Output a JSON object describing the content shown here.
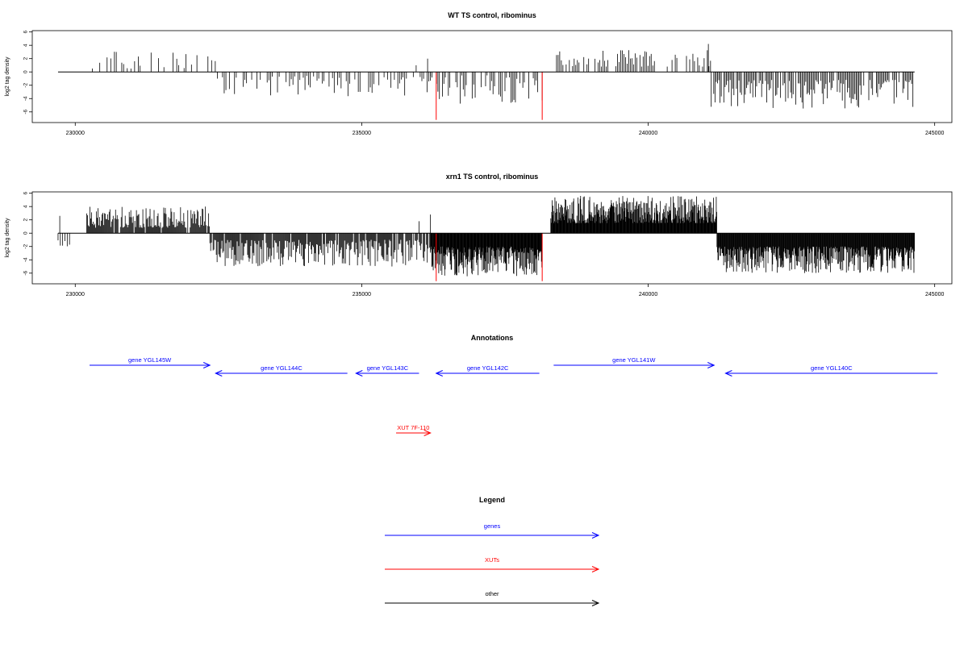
{
  "chart_data": [
    {
      "type": "bar",
      "id": "wt",
      "title": "WT TS control, ribominus",
      "xlabel": "",
      "ylabel": "log2 tag density",
      "xlim": [
        229250,
        245300
      ],
      "ylim": [
        -7.6,
        6.2
      ],
      "x_ticks": [
        230000,
        235000,
        240000,
        245000
      ],
      "x_tick_labels": [
        "230000",
        "235000",
        "240000",
        "245000"
      ],
      "y_ticks": [
        6,
        4,
        2,
        0,
        -2,
        -4,
        -6
      ],
      "y_tick_labels": [
        "6",
        "4",
        "2",
        "0",
        "-2",
        "-4",
        "-6"
      ],
      "baseline": [
        229700,
        244650
      ],
      "segments": [
        {
          "start": 230300,
          "end": 232450,
          "sign": 1,
          "min": 0.5,
          "max": 3.2,
          "step": 32,
          "density": 0.45
        },
        {
          "start": 232450,
          "end": 236200,
          "sign": -1,
          "min": 0.6,
          "max": 3.8,
          "step": 30,
          "density": 0.55
        },
        {
          "start": 236200,
          "end": 238150,
          "sign": -1,
          "min": 0.5,
          "max": 4.8,
          "step": 26,
          "density": 0.6
        },
        {
          "start": 238400,
          "end": 241100,
          "sign": 1,
          "min": 0.8,
          "max": 3.3,
          "step": 28,
          "density": 0.7
        },
        {
          "start": 241100,
          "end": 244650,
          "sign": -1,
          "min": 1.2,
          "max": 5.5,
          "step": 22,
          "density": 0.85
        }
      ],
      "highlights": [
        {
          "x": 236300,
          "value": -7.2,
          "color": "#ff0000"
        },
        {
          "x": 238150,
          "value": -7.2,
          "color": "#ff0000"
        }
      ],
      "extra_bars": [
        {
          "x": 235950,
          "value": 1.0
        },
        {
          "x": 236150,
          "value": 2.0
        },
        {
          "x": 241050,
          "value": 4.2
        }
      ]
    },
    {
      "type": "bar",
      "id": "xrn1",
      "title": "xrn1 TS control, ribominus",
      "xlabel": "",
      "ylabel": "log2 tag density",
      "xlim": [
        229250,
        245300
      ],
      "ylim": [
        -7.6,
        6.2
      ],
      "x_ticks": [
        230000,
        235000,
        240000,
        245000
      ],
      "x_tick_labels": [
        "230000",
        "235000",
        "240000",
        "245000"
      ],
      "y_ticks": [
        6,
        4,
        2,
        0,
        -2,
        -4,
        -6
      ],
      "y_tick_labels": [
        "6",
        "4",
        "2",
        "0",
        "-2",
        "-4",
        "-6"
      ],
      "baseline": [
        229700,
        244650
      ],
      "segments": [
        {
          "start": 229700,
          "end": 229900,
          "sign": -1,
          "min": 1.0,
          "max": 2.5,
          "step": 40,
          "density": 0.8
        },
        {
          "start": 230200,
          "end": 232350,
          "sign": 1,
          "min": 0.8,
          "max": 4.0,
          "step": 14,
          "density": 0.9
        },
        {
          "start": 232350,
          "end": 236200,
          "sign": -1,
          "min": 1.0,
          "max": 5.0,
          "step": 14,
          "density": 0.9
        },
        {
          "start": 236200,
          "end": 238150,
          "sign": -1,
          "min": 2.0,
          "max": 6.5,
          "step": 8,
          "density": 1.0
        },
        {
          "start": 238300,
          "end": 241200,
          "sign": 1,
          "min": 1.5,
          "max": 5.6,
          "step": 8,
          "density": 1.0
        },
        {
          "start": 241200,
          "end": 244650,
          "sign": -1,
          "min": 2.0,
          "max": 6.0,
          "step": 9,
          "density": 1.0
        }
      ],
      "highlights": [
        {
          "x": 236300,
          "value": -7.2,
          "color": "#ff0000"
        },
        {
          "x": 238150,
          "value": -7.2,
          "color": "#ff0000"
        }
      ],
      "extra_bars": [
        {
          "x": 229730,
          "value": 2.6
        },
        {
          "x": 236000,
          "value": 1.8
        },
        {
          "x": 236200,
          "value": 2.8
        }
      ]
    }
  ],
  "annotations": {
    "title": "Annotations",
    "genes": [
      {
        "label": "gene YGL145W",
        "start": 230250,
        "end": 232350,
        "row": 0,
        "color": "#0000ff"
      },
      {
        "label": "gene YGL144C",
        "start": 234750,
        "end": 232450,
        "row": 1,
        "color": "#0000ff"
      },
      {
        "label": "gene YGL143C",
        "start": 236000,
        "end": 234900,
        "row": 1,
        "color": "#0000ff"
      },
      {
        "label": "gene YGL142C",
        "start": 238100,
        "end": 236300,
        "row": 1,
        "color": "#0000ff"
      },
      {
        "label": "gene YGL141W",
        "start": 238350,
        "end": 241150,
        "row": 0,
        "color": "#0000ff"
      },
      {
        "label": "gene YGL140C",
        "start": 245050,
        "end": 241350,
        "row": 1,
        "color": "#0000ff"
      },
      {
        "label": "XUT 7F-110",
        "start": 235600,
        "end": 236200,
        "row": 2,
        "color": "#ff0000"
      }
    ]
  },
  "legend": {
    "title": "Legend",
    "items": [
      {
        "label": "genes",
        "color": "#0000ff"
      },
      {
        "label": "XUTs",
        "color": "#ff0000"
      },
      {
        "label": "other",
        "color": "#000000"
      }
    ]
  }
}
